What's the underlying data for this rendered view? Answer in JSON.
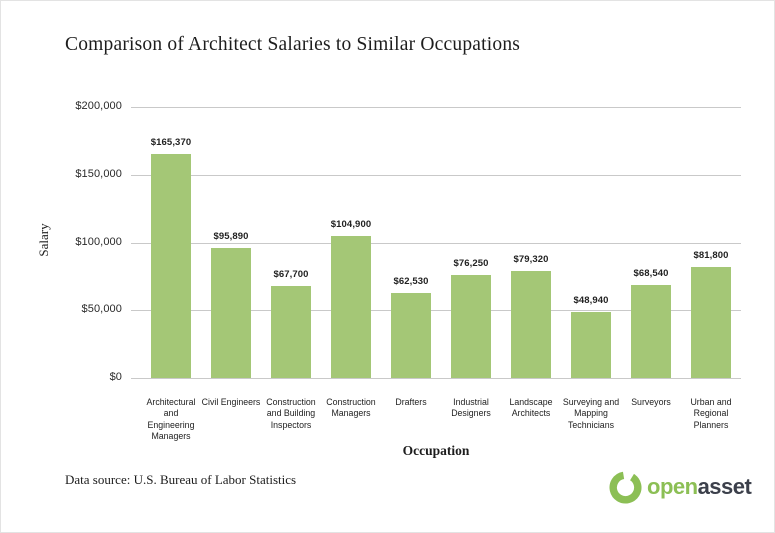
{
  "chart_data": {
    "type": "bar",
    "title": "Comparison of Architect Salaries to Similar Occupations",
    "xlabel": "Occupation",
    "ylabel": "Salary",
    "ylim": [
      0,
      200000
    ],
    "ytick_labels": [
      "$200,000",
      "$150,000",
      "$100,000",
      "$50,000",
      "$0"
    ],
    "grid": true,
    "legend": "none",
    "bar_color": "#a4c776",
    "categories": [
      "Architectural and Engineering Managers",
      "Civil Engineers",
      "Construction and Building Inspectors",
      "Construction Managers",
      "Drafters",
      "Industrial Designers",
      "Landscape Architects",
      "Surveying and Mapping Technicians",
      "Surveyors",
      "Urban and Regional Planners"
    ],
    "values": [
      165370,
      95890,
      67700,
      104900,
      62530,
      76250,
      79320,
      48940,
      68540,
      81800
    ],
    "value_labels": [
      "$165,370",
      "$95,890",
      "$67,700",
      "$104,900",
      "$62,530",
      "$76,250",
      "$79,320",
      "$48,940",
      "$68,540",
      "$81,800"
    ]
  },
  "footer": {
    "source": "Data source: U.S. Bureau of Labor Statistics",
    "logo": {
      "open": "open",
      "asset": "asset",
      "green": "#8cbf55",
      "dark": "#3c404b"
    }
  },
  "colors": {
    "gridline": "#c9c9c9",
    "text": "#222222"
  }
}
